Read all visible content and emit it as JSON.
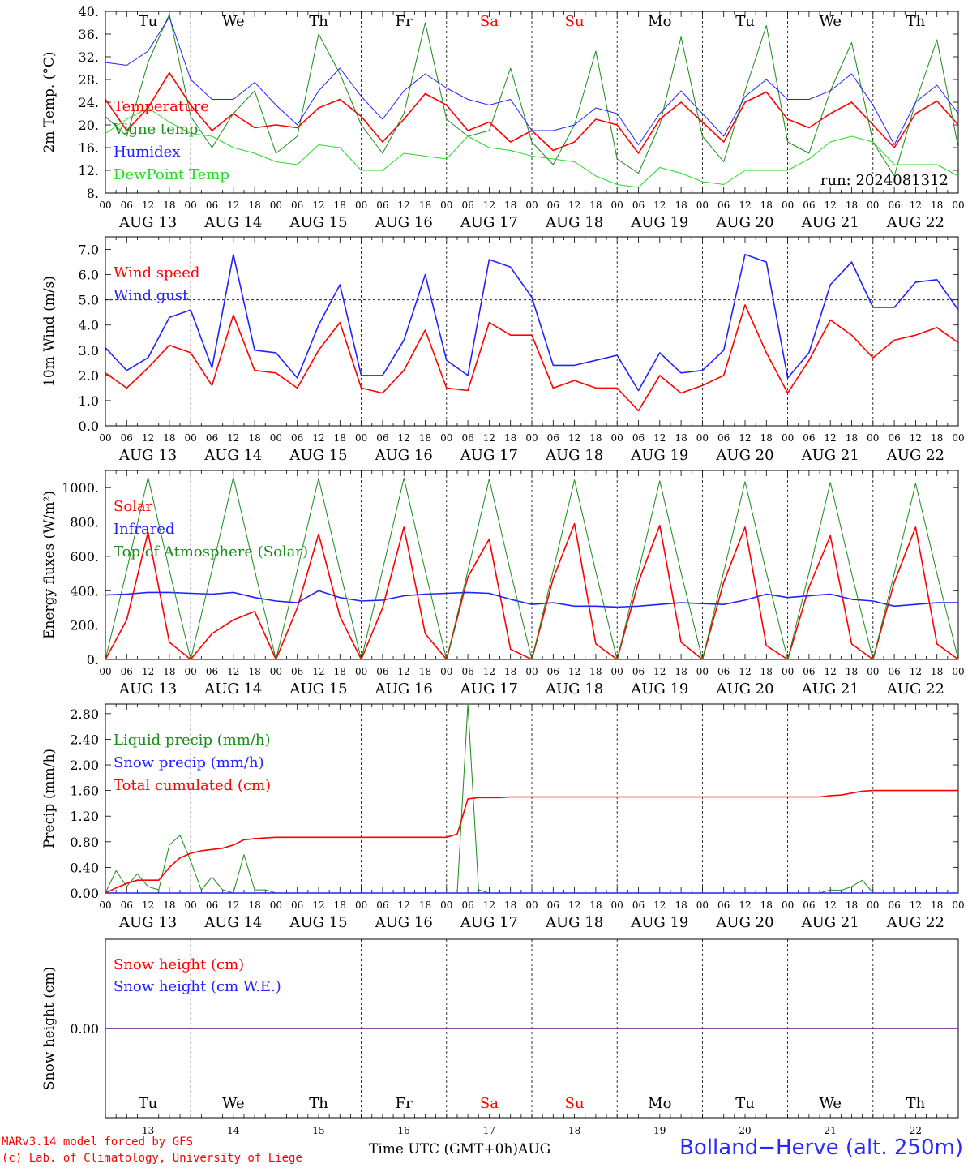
{
  "footer": {
    "credit_line1": "MARv3.14 model forced by GFS",
    "credit_line2": "(c) Lab. of Climatology, University of Liege",
    "x_axis_title": "Time UTC (GMT+0h)",
    "month": "AUG",
    "station": "Bolland−Herve (alt. 250m)"
  },
  "days": {
    "weekdays": [
      "Tu",
      "We",
      "Th",
      "Fr",
      "Sa",
      "Su",
      "Mo",
      "Tu",
      "We",
      "Th"
    ],
    "weekend_flags": [
      false,
      false,
      false,
      false,
      true,
      true,
      false,
      false,
      false,
      false
    ],
    "date_labels": [
      "AUG 13",
      "AUG 14",
      "AUG 15",
      "AUG 16",
      "AUG 17",
      "AUG 18",
      "AUG 19",
      "AUG 20",
      "AUG 21",
      "AUG 22"
    ],
    "day_numbers": [
      "13",
      "14",
      "15",
      "16",
      "17",
      "18",
      "19",
      "20",
      "21",
      "22"
    ],
    "hour_ticks": [
      "00",
      "06",
      "12",
      "18"
    ]
  },
  "colors": {
    "red": "#ff0000",
    "green": "#1a8c1a",
    "blue": "#2222ff",
    "lightgreen": "#22dd22",
    "purple": "#7030a0",
    "weekend": "#ff0000"
  },
  "chart_data": [
    {
      "id": "temperature",
      "type": "line",
      "ylabel": "2m Temp. (°C)",
      "ylim": [
        8,
        40
      ],
      "yticks": [
        "40.",
        "36.",
        "32.",
        "28.",
        "24.",
        "20.",
        "16.",
        "12.",
        "8."
      ],
      "annotation": "run: 2024081312",
      "x_unit": "hours since AUG 13 00 UTC, 6-hourly",
      "series": [
        {
          "name": "Temperature",
          "color": "red",
          "values": [
            24.5,
            19,
            23,
            29.2,
            23.5,
            19,
            22,
            19.5,
            20,
            19.5,
            23,
            24.5,
            21.5,
            17,
            21,
            25.5,
            23.5,
            19,
            20.5,
            17,
            19,
            15.5,
            17,
            21,
            20,
            15,
            21,
            24,
            20.5,
            17,
            24,
            25.8,
            21,
            19.5,
            22,
            24,
            20,
            16,
            22,
            24.2,
            20
          ]
        },
        {
          "name": "Vigne temp",
          "color": "green",
          "values": [
            21.5,
            18,
            31,
            39.5,
            21.5,
            16,
            22,
            26,
            15,
            18,
            36,
            29,
            20,
            15,
            22,
            38,
            21,
            18,
            19,
            30,
            17,
            13,
            20,
            33,
            14,
            11.5,
            20,
            35.5,
            18,
            13.5,
            26,
            37.5,
            17,
            15,
            26,
            34.5,
            17,
            11,
            24,
            35,
            16
          ]
        },
        {
          "name": "Humidex",
          "color": "blue",
          "values": [
            31,
            30.5,
            33,
            39,
            28,
            24.5,
            24.5,
            27.5,
            23.5,
            20,
            26,
            30,
            25,
            21,
            26,
            29,
            26.5,
            24.5,
            23.5,
            24.5,
            19,
            19,
            20,
            23,
            22,
            16.5,
            22,
            26,
            22,
            18,
            25,
            28,
            24.5,
            24.5,
            26,
            29,
            23.5,
            16.5,
            24,
            27,
            22
          ]
        },
        {
          "name": "DewPoint Temp",
          "color": "lightgreen",
          "values": [
            18.5,
            21,
            23,
            20.5,
            18.5,
            18,
            16,
            15,
            13.5,
            13,
            16.5,
            16,
            12,
            12,
            15,
            14.5,
            14,
            18,
            16,
            15.5,
            14.5,
            14,
            13.5,
            11,
            9.5,
            9,
            12.5,
            11.5,
            10,
            9.5,
            12,
            12,
            12,
            14,
            17,
            18,
            17,
            13,
            13,
            13,
            11
          ]
        }
      ]
    },
    {
      "id": "wind",
      "type": "line",
      "ylabel": "10m Wind (m/s)",
      "ylim": [
        0,
        7.5
      ],
      "yticks": [
        "7.0",
        "6.0",
        "5.0",
        "4.0",
        "3.0",
        "2.0",
        "1.0",
        "0.0"
      ],
      "reference_line": 5.0,
      "x_unit": "hours since AUG 13 00 UTC, 6-hourly",
      "series": [
        {
          "name": "Wind speed",
          "color": "red",
          "values": [
            2.1,
            1.5,
            2.3,
            3.2,
            2.9,
            1.6,
            4.4,
            2.2,
            2.1,
            1.5,
            3.0,
            4.1,
            1.5,
            1.3,
            2.2,
            3.8,
            1.5,
            1.4,
            4.1,
            3.6,
            3.6,
            1.5,
            1.8,
            1.5,
            1.5,
            0.6,
            2.0,
            1.3,
            1.6,
            2.0,
            4.8,
            2.9,
            1.3,
            2.6,
            4.2,
            3.6,
            2.7,
            3.4,
            3.6,
            3.9,
            3.3
          ]
        },
        {
          "name": "Wind gust",
          "color": "blue",
          "values": [
            3.1,
            2.2,
            2.7,
            4.3,
            4.6,
            2.3,
            6.8,
            3.0,
            2.9,
            1.9,
            4.0,
            5.6,
            2.0,
            2.0,
            3.4,
            6.0,
            2.6,
            2.0,
            6.6,
            6.3,
            5.1,
            2.4,
            2.4,
            2.6,
            2.8,
            1.4,
            2.9,
            2.1,
            2.2,
            3.0,
            6.8,
            6.5,
            1.9,
            2.9,
            5.6,
            6.5,
            4.7,
            4.7,
            5.7,
            5.8,
            4.6
          ]
        }
      ]
    },
    {
      "id": "energy",
      "type": "line",
      "ylabel": "Energy fluxes (W/m²)",
      "ylim": [
        0,
        1100
      ],
      "yticks": [
        "1000.",
        "800.",
        "600.",
        "400.",
        "200.",
        "0."
      ],
      "x_unit": "hours since AUG 13 00 UTC, 6-hourly",
      "series": [
        {
          "name": "Solar",
          "color": "red",
          "values": [
            0,
            230,
            740,
            100,
            0,
            150,
            230,
            280,
            0,
            300,
            730,
            250,
            0,
            300,
            770,
            150,
            0,
            480,
            700,
            60,
            0,
            470,
            790,
            90,
            0,
            450,
            780,
            100,
            0,
            450,
            770,
            80,
            0,
            420,
            720,
            90,
            0,
            450,
            770,
            90,
            0
          ]
        },
        {
          "name": "Infrared",
          "color": "blue",
          "values": [
            375,
            380,
            390,
            390,
            385,
            380,
            390,
            360,
            340,
            330,
            400,
            360,
            340,
            345,
            370,
            380,
            385,
            390,
            385,
            350,
            320,
            330,
            310,
            310,
            305,
            310,
            320,
            330,
            325,
            320,
            345,
            380,
            360,
            370,
            380,
            350,
            340,
            310,
            320,
            330,
            330
          ]
        },
        {
          "name": "Top of Atmosphere (Solar)",
          "color": "green",
          "values": [
            0,
            520,
            1060,
            520,
            0,
            520,
            1060,
            520,
            0,
            520,
            1055,
            515,
            0,
            520,
            1055,
            515,
            0,
            515,
            1050,
            510,
            0,
            515,
            1045,
            510,
            0,
            510,
            1040,
            505,
            0,
            510,
            1035,
            505,
            0,
            505,
            1030,
            500,
            0,
            500,
            1025,
            500,
            0
          ]
        }
      ]
    },
    {
      "id": "precip",
      "type": "line",
      "ylabel": "Precip (mm/h)",
      "ylim": [
        0,
        2.95
      ],
      "yticks": [
        "2.80",
        "2.40",
        "2.00",
        "1.60",
        "1.20",
        "0.80",
        "0.40",
        "0.00"
      ],
      "x_unit": "hours since AUG 13 00 UTC, 3-hourly (81 points)",
      "series": [
        {
          "name": "Liquid precip (mm/h)",
          "color": "green",
          "values": [
            0,
            0.35,
            0.1,
            0.3,
            0.1,
            0.05,
            0.75,
            0.9,
            0.5,
            0.05,
            0.25,
            0.05,
            0,
            0.6,
            0.05,
            0.05,
            0,
            0,
            0,
            0,
            0,
            0,
            0,
            0,
            0,
            0,
            0,
            0,
            0,
            0,
            0,
            0,
            0,
            0,
            2.95,
            0.05,
            0,
            0,
            0,
            0,
            0,
            0,
            0,
            0,
            0,
            0,
            0,
            0,
            0,
            0,
            0,
            0,
            0,
            0,
            0,
            0,
            0,
            0,
            0,
            0,
            0,
            0,
            0,
            0,
            0,
            0,
            0,
            0,
            0.05,
            0.04,
            0.1,
            0.2,
            0,
            0,
            0,
            0,
            0,
            0,
            0,
            0,
            0
          ]
        },
        {
          "name": "Snow precip (mm/h)",
          "color": "blue",
          "values": [
            0,
            0,
            0,
            0,
            0,
            0,
            0,
            0,
            0,
            0,
            0,
            0,
            0,
            0,
            0,
            0,
            0,
            0,
            0,
            0,
            0,
            0,
            0,
            0,
            0,
            0,
            0,
            0,
            0,
            0,
            0,
            0,
            0,
            0,
            0,
            0,
            0,
            0,
            0,
            0,
            0,
            0,
            0,
            0,
            0,
            0,
            0,
            0,
            0,
            0,
            0,
            0,
            0,
            0,
            0,
            0,
            0,
            0,
            0,
            0,
            0,
            0,
            0,
            0,
            0,
            0,
            0,
            0,
            0,
            0,
            0,
            0,
            0,
            0,
            0,
            0,
            0,
            0,
            0,
            0,
            0
          ]
        },
        {
          "name": "Total cumulated (cm)",
          "color": "red",
          "values": [
            0,
            0.08,
            0.15,
            0.2,
            0.2,
            0.2,
            0.4,
            0.55,
            0.62,
            0.66,
            0.68,
            0.7,
            0.75,
            0.83,
            0.85,
            0.86,
            0.87,
            0.87,
            0.87,
            0.87,
            0.87,
            0.87,
            0.87,
            0.87,
            0.87,
            0.87,
            0.87,
            0.87,
            0.87,
            0.87,
            0.87,
            0.87,
            0.87,
            0.92,
            1.47,
            1.49,
            1.49,
            1.49,
            1.5,
            1.5,
            1.5,
            1.5,
            1.5,
            1.5,
            1.5,
            1.5,
            1.5,
            1.5,
            1.5,
            1.5,
            1.5,
            1.5,
            1.5,
            1.5,
            1.5,
            1.5,
            1.5,
            1.5,
            1.5,
            1.5,
            1.5,
            1.5,
            1.5,
            1.5,
            1.5,
            1.5,
            1.5,
            1.5,
            1.52,
            1.53,
            1.56,
            1.59,
            1.6,
            1.6,
            1.6,
            1.6,
            1.6,
            1.6,
            1.6,
            1.6,
            1.6
          ]
        }
      ]
    },
    {
      "id": "snow",
      "type": "line",
      "ylabel": "Snow height (cm)",
      "ylim": [
        -1,
        1
      ],
      "yticks": [
        "0.00"
      ],
      "x_unit": "hours since AUG 13 00 UTC, 6-hourly",
      "series": [
        {
          "name": "Snow height (cm)",
          "color": "red",
          "values": [
            0,
            0,
            0,
            0,
            0,
            0,
            0,
            0,
            0,
            0,
            0,
            0,
            0,
            0,
            0,
            0,
            0,
            0,
            0,
            0,
            0,
            0,
            0,
            0,
            0,
            0,
            0,
            0,
            0,
            0,
            0,
            0,
            0,
            0,
            0,
            0,
            0,
            0,
            0,
            0,
            0
          ]
        },
        {
          "name": "Snow height (cm W.E.)",
          "color": "blue",
          "values": [
            0,
            0,
            0,
            0,
            0,
            0,
            0,
            0,
            0,
            0,
            0,
            0,
            0,
            0,
            0,
            0,
            0,
            0,
            0,
            0,
            0,
            0,
            0,
            0,
            0,
            0,
            0,
            0,
            0,
            0,
            0,
            0,
            0,
            0,
            0,
            0,
            0,
            0,
            0,
            0,
            0
          ]
        }
      ]
    }
  ]
}
